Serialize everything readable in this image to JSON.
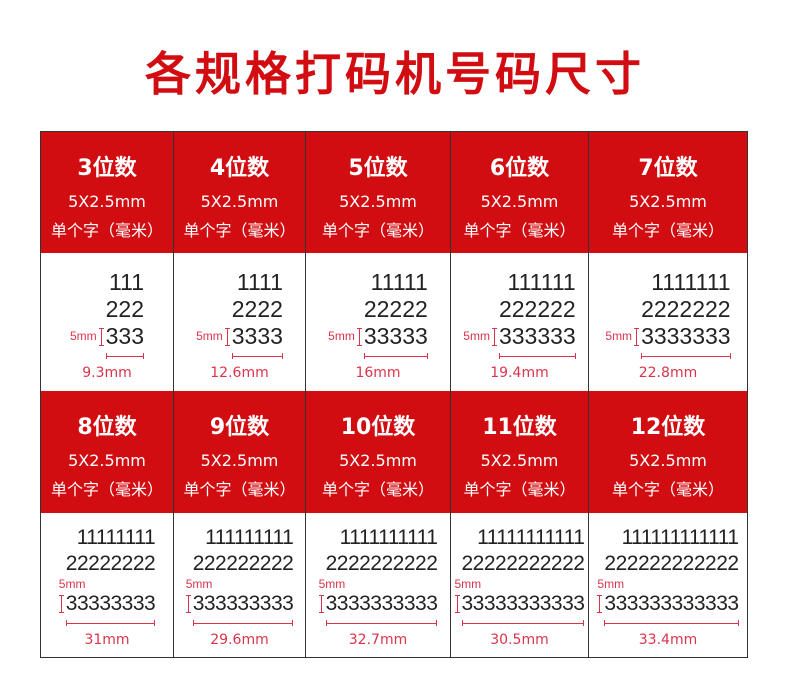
{
  "title": "各规格打码机号码尺寸",
  "accent_color": "#d10d12",
  "height_label": "5mm",
  "rows": [
    [
      {
        "name": "3位数",
        "size": "5X2.5mm",
        "unit": "单个字（毫米）",
        "lines": [
          "111",
          "222",
          "333"
        ],
        "width": "9.3mm"
      },
      {
        "name": "4位数",
        "size": "5X2.5mm",
        "unit": "单个字（毫米）",
        "lines": [
          "1111",
          "2222",
          "3333"
        ],
        "width": "12.6mm"
      },
      {
        "name": "5位数",
        "size": "5X2.5mm",
        "unit": "单个字（毫米）",
        "lines": [
          "11111",
          "22222",
          "33333"
        ],
        "width": "16mm"
      },
      {
        "name": "6位数",
        "size": "5X2.5mm",
        "unit": "单个字（毫米）",
        "lines": [
          "111111",
          "222222",
          "333333"
        ],
        "width": "19.4mm"
      },
      {
        "name": "7位数",
        "size": "5X2.5mm",
        "unit": "单个字（毫米）",
        "lines": [
          "1111111",
          "2222222",
          "3333333"
        ],
        "width": "22.8mm"
      }
    ],
    [
      {
        "name": "8位数",
        "size": "5X2.5mm",
        "unit": "单个字（毫米）",
        "lines": [
          "11111111",
          "22222222",
          "33333333"
        ],
        "width": "31mm"
      },
      {
        "name": "9位数",
        "size": "5X2.5mm",
        "unit": "单个字（毫米）",
        "lines": [
          "111111111",
          "222222222",
          "333333333"
        ],
        "width": "29.6mm"
      },
      {
        "name": "10位数",
        "size": "5X2.5mm",
        "unit": "单个字（毫米）",
        "lines": [
          "1111111111",
          "2222222222",
          "3333333333"
        ],
        "width": "32.7mm"
      },
      {
        "name": "11位数",
        "size": "5X2.5mm",
        "unit": "单个字（毫米）",
        "lines": [
          "11111111111",
          "22222222222",
          "33333333333"
        ],
        "width": "30.5mm"
      },
      {
        "name": "12位数",
        "size": "5X2.5mm",
        "unit": "单个字（毫米）",
        "lines": [
          "111111111111",
          "222222222222",
          "333333333333"
        ],
        "width": "33.4mm"
      }
    ]
  ]
}
